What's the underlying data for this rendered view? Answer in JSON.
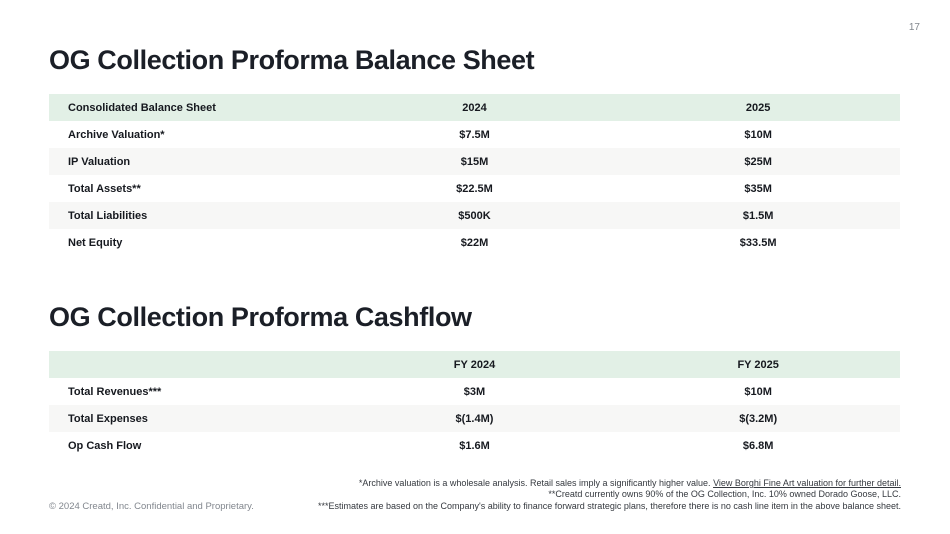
{
  "page": {
    "number": "17"
  },
  "balance_sheet": {
    "title": "OG Collection Proforma Balance Sheet",
    "headers": {
      "col1": "Consolidated Balance Sheet",
      "col2": "2024",
      "col3": "2025"
    },
    "rows": [
      {
        "label": "Archive Valuation*",
        "v1": "$7.5M",
        "v2": "$10M"
      },
      {
        "label": "IP Valuation",
        "v1": "$15M",
        "v2": "$25M"
      },
      {
        "label": "Total Assets**",
        "v1": "$22.5M",
        "v2": "$35M"
      },
      {
        "label": "Total Liabilities",
        "v1": "$500K",
        "v2": "$1.5M"
      },
      {
        "label": "Net Equity",
        "v1": "$22M",
        "v2": "$33.5M"
      }
    ]
  },
  "cashflow": {
    "title": "OG Collection Proforma Cashflow",
    "headers": {
      "col1": "",
      "col2": "FY 2024",
      "col3": "FY 2025"
    },
    "rows": [
      {
        "label": "Total Revenues***",
        "v1": "$3M",
        "v2": "$10M"
      },
      {
        "label": "Total Expenses",
        "v1": "$(1.4M)",
        "v2": "$(3.2M)"
      },
      {
        "label": "Op Cash Flow",
        "v1": "$1.6M",
        "v2": "$6.8M"
      }
    ]
  },
  "footnotes": {
    "note1_text": "*Archive valuation is a wholesale analysis. Retail sales imply a significantly higher value. ",
    "note1_link": "View Borghi Fine Art valuation for further detail.",
    "note2": "**Creatd currently owns 90% of the OG Collection, Inc. 10% owned Dorado Goose, LLC.",
    "note3": "***Estimates are based on the Company's ability to finance forward strategic plans, therefore there is no cash line item in the above balance sheet."
  },
  "footer": {
    "copyright": "© 2024 Creatd, Inc. Confidential and Proprietary."
  },
  "colors": {
    "header_row_bg": "#e2f0e6",
    "alt_row_bg": "#f7f7f6",
    "title_text": "#1b1f27",
    "body_text": "#16191f",
    "muted_text": "#82878e"
  }
}
